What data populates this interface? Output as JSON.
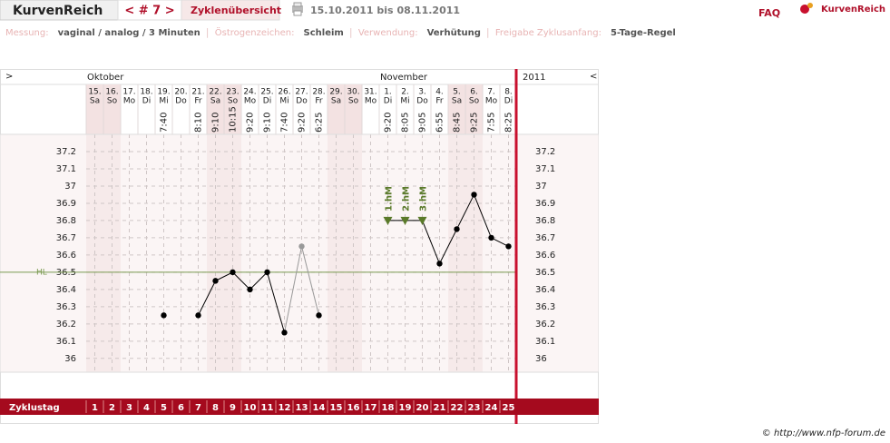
{
  "header": {
    "brand": "KurvenReich",
    "cycle_nav": "< # 7 >",
    "overview": "Zyklenübersicht",
    "date_range": "15.10.2011 bis 08.11.2011",
    "faq": "FAQ",
    "logo": "KurvenReich"
  },
  "info": [
    {
      "label": "Messung:",
      "value": "vaginal / analog / 3 Minuten"
    },
    {
      "label": "Östrogenzeichen:",
      "value": "Schleim"
    },
    {
      "label": "Verwendung:",
      "value": "Verhütung"
    },
    {
      "label": "Freigabe Zyklusanfang:",
      "value": "5-Tage-Regel"
    }
  ],
  "chart_data": {
    "type": "line",
    "nav_left": ">",
    "nav_right": "<",
    "year": "2011",
    "month_labels": [
      "Oktober",
      null,
      null,
      null,
      null,
      null,
      null,
      null,
      null,
      null,
      null,
      null,
      null,
      null,
      null,
      null,
      null,
      "November",
      null,
      null,
      null,
      null,
      null,
      null,
      null
    ],
    "categories": [
      "15.",
      "16.",
      "17.",
      "18.",
      "19.",
      "20.",
      "21.",
      "22.",
      "23.",
      "24.",
      "25.",
      "26.",
      "27.",
      "28.",
      "29.",
      "30.",
      "31.",
      "1.",
      "2.",
      "3.",
      "4.",
      "5.",
      "6.",
      "7.",
      "8."
    ],
    "weekdays": [
      "Sa",
      "So",
      "Mo",
      "Di",
      "Mi",
      "Do",
      "Fr",
      "Sa",
      "So",
      "Mo",
      "Di",
      "Mi",
      "Do",
      "Fr",
      "Sa",
      "So",
      "Mo",
      "Di",
      "Mi",
      "Do",
      "Fr",
      "Sa",
      "So",
      "Mo",
      "Di"
    ],
    "times": [
      null,
      null,
      null,
      null,
      "7:40",
      null,
      "8:10",
      "9:10",
      "10:15",
      "9:20",
      "9:10",
      "7:40",
      "9:20",
      "6:25",
      null,
      null,
      null,
      "9:20",
      "8:05",
      "9:05",
      "6:55",
      "8:45",
      "9:25",
      "7:55",
      "8:25"
    ],
    "series": [
      {
        "color": "#000000",
        "excluded_color": "#999999",
        "excluded": [
          12
        ],
        "values": [
          null,
          null,
          null,
          null,
          36.25,
          null,
          36.25,
          36.45,
          36.5,
          36.4,
          36.5,
          36.15,
          36.65,
          36.25,
          null,
          null,
          null,
          36.8,
          36.8,
          36.8,
          36.55,
          36.75,
          36.95,
          36.7,
          36.65
        ]
      }
    ],
    "markers": [
      null,
      null,
      null,
      null,
      null,
      null,
      null,
      null,
      null,
      null,
      null,
      null,
      null,
      null,
      null,
      null,
      null,
      "1.hM",
      "2.hM",
      "3.hM",
      null,
      null,
      null,
      null,
      null
    ],
    "marker_color": "#5a7a2a",
    "ylim": [
      35.92,
      37.3
    ],
    "yticks": [
      36,
      36.1,
      36.2,
      36.3,
      36.4,
      36.5,
      36.6,
      36.7,
      36.8,
      36.9,
      37,
      37.1,
      37.2
    ],
    "hl": {
      "value": 36.5,
      "label": "HL"
    },
    "grid": true,
    "cycle_day_label": "Zyklustag",
    "cycle_days": [
      1,
      2,
      3,
      4,
      5,
      6,
      7,
      8,
      9,
      10,
      11,
      12,
      13,
      14,
      15,
      16,
      17,
      18,
      19,
      20,
      21,
      22,
      23,
      24,
      25
    ]
  },
  "footer": "© http://www.nfp-forum.de"
}
